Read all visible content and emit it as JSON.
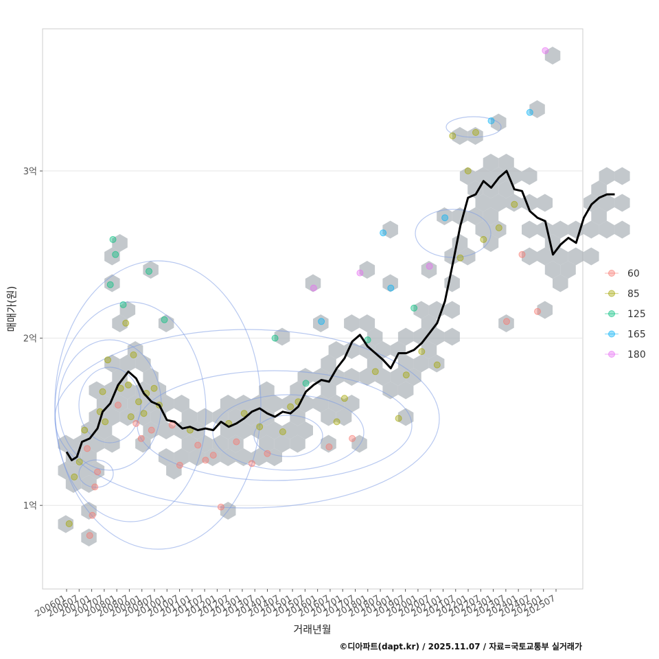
{
  "chart_data": {
    "type": "scatter",
    "xlabel": "거래년월",
    "ylabel": "매매가(원)",
    "caption": "©디아파트(dapt.kr) / 2025.11.07 / 자료=국토교통부 실거래가",
    "x_range": [
      "2006-01",
      "2025-12"
    ],
    "ylim_eok": [
      0.5,
      3.85
    ],
    "y_ticks": [
      {
        "value": 1,
        "label": "1억"
      },
      {
        "value": 2,
        "label": "2억"
      },
      {
        "value": 3,
        "label": "3억"
      }
    ],
    "x_tick_labels": [
      "200601",
      "200607",
      "200701",
      "200707",
      "200801",
      "200807",
      "200901",
      "200907",
      "201001",
      "201007",
      "201101",
      "201107",
      "201201",
      "201207",
      "201301",
      "201307",
      "201401",
      "201407",
      "201501",
      "201507",
      "201601",
      "201607",
      "201701",
      "201707",
      "201801",
      "201807",
      "201901",
      "201907",
      "202001",
      "202007",
      "202101",
      "202107",
      "202201",
      "202207",
      "202301",
      "202307",
      "202401",
      "202407",
      "202501",
      "202507"
    ],
    "legend": {
      "position": "right",
      "entries": [
        {
          "label": "60",
          "color": "#F8766D"
        },
        {
          "label": "85",
          "color": "#A3A500"
        },
        {
          "label": "125",
          "color": "#00BF7D"
        },
        {
          "label": "165",
          "color": "#00B0F6"
        },
        {
          "label": "180",
          "color": "#E76BF3"
        }
      ]
    },
    "hexbin_color": "#A9B0B6",
    "contour_color": "#7B9BE3",
    "trend_line": {
      "name": "moving-average",
      "color": "#000000",
      "points": [
        [
          "2006-01",
          1.32
        ],
        [
          "2006-03",
          1.27
        ],
        [
          "2006-05",
          1.29
        ],
        [
          "2006-07",
          1.38
        ],
        [
          "2006-10",
          1.4
        ],
        [
          "2007-01",
          1.46
        ],
        [
          "2007-03",
          1.56
        ],
        [
          "2007-06",
          1.61
        ],
        [
          "2007-09",
          1.72
        ],
        [
          "2008-01",
          1.8
        ],
        [
          "2008-04",
          1.76
        ],
        [
          "2008-07",
          1.67
        ],
        [
          "2008-10",
          1.62
        ],
        [
          "2009-01",
          1.6
        ],
        [
          "2009-04",
          1.51
        ],
        [
          "2009-07",
          1.5
        ],
        [
          "2009-10",
          1.46
        ],
        [
          "2010-01",
          1.47
        ],
        [
          "2010-04",
          1.45
        ],
        [
          "2010-07",
          1.46
        ],
        [
          "2010-10",
          1.45
        ],
        [
          "2011-01",
          1.5
        ],
        [
          "2011-04",
          1.47
        ],
        [
          "2011-07",
          1.49
        ],
        [
          "2011-10",
          1.52
        ],
        [
          "2012-01",
          1.56
        ],
        [
          "2012-04",
          1.58
        ],
        [
          "2012-07",
          1.55
        ],
        [
          "2012-10",
          1.53
        ],
        [
          "2013-01",
          1.56
        ],
        [
          "2013-04",
          1.55
        ],
        [
          "2013-07",
          1.59
        ],
        [
          "2013-10",
          1.68
        ],
        [
          "2014-01",
          1.72
        ],
        [
          "2014-04",
          1.75
        ],
        [
          "2014-07",
          1.74
        ],
        [
          "2014-10",
          1.82
        ],
        [
          "2015-01",
          1.88
        ],
        [
          "2015-04",
          1.98
        ],
        [
          "2015-07",
          2.02
        ],
        [
          "2015-10",
          1.95
        ],
        [
          "2016-01",
          1.91
        ],
        [
          "2016-04",
          1.87
        ],
        [
          "2016-07",
          1.82
        ],
        [
          "2016-10",
          1.91
        ],
        [
          "2017-01",
          1.91
        ],
        [
          "2017-04",
          1.93
        ],
        [
          "2017-07",
          1.97
        ],
        [
          "2017-10",
          2.03
        ],
        [
          "2018-01",
          2.09
        ],
        [
          "2018-04",
          2.22
        ],
        [
          "2018-07",
          2.44
        ],
        [
          "2018-10",
          2.67
        ],
        [
          "2019-01",
          2.84
        ],
        [
          "2019-04",
          2.86
        ],
        [
          "2019-07",
          2.94
        ],
        [
          "2019-10",
          2.9
        ],
        [
          "2020-01",
          2.96
        ],
        [
          "2020-04",
          3.0
        ],
        [
          "2020-07",
          2.89
        ],
        [
          "2020-10",
          2.88
        ],
        [
          "2021-01",
          2.76
        ],
        [
          "2021-04",
          2.72
        ],
        [
          "2021-07",
          2.7
        ],
        [
          "2021-10",
          2.5
        ],
        [
          "2022-01",
          2.56
        ],
        [
          "2022-04",
          2.6
        ],
        [
          "2022-07",
          2.57
        ],
        [
          "2022-10",
          2.72
        ],
        [
          "2023-01",
          2.8
        ],
        [
          "2023-04",
          2.84
        ],
        [
          "2023-07",
          2.86
        ],
        [
          "2023-10",
          2.86
        ]
      ]
    },
    "scatter_points": [
      [
        "2006-02",
        0.89,
        "85"
      ],
      [
        "2006-04",
        1.17,
        "85"
      ],
      [
        "2006-06",
        1.26,
        "85"
      ],
      [
        "2006-08",
        1.45,
        "85"
      ],
      [
        "2006-09",
        1.34,
        "60"
      ],
      [
        "2006-10",
        0.82,
        "60"
      ],
      [
        "2006-11",
        0.94,
        "60"
      ],
      [
        "2006-12",
        1.11,
        "60"
      ],
      [
        "2007-01",
        1.2,
        "60"
      ],
      [
        "2007-02",
        1.56,
        "85"
      ],
      [
        "2007-03",
        1.68,
        "85"
      ],
      [
        "2007-04",
        1.5,
        "85"
      ],
      [
        "2007-05",
        1.87,
        "85"
      ],
      [
        "2007-06",
        2.32,
        "125"
      ],
      [
        "2007-07",
        2.59,
        "125"
      ],
      [
        "2007-08",
        2.5,
        "125"
      ],
      [
        "2007-09",
        1.6,
        "60"
      ],
      [
        "2007-10",
        1.7,
        "85"
      ],
      [
        "2007-11",
        2.2,
        "125"
      ],
      [
        "2007-12",
        2.09,
        "85"
      ],
      [
        "2008-01",
        1.72,
        "85"
      ],
      [
        "2008-02",
        1.53,
        "85"
      ],
      [
        "2008-03",
        1.9,
        "85"
      ],
      [
        "2008-04",
        1.49,
        "60"
      ],
      [
        "2008-05",
        1.62,
        "85"
      ],
      [
        "2008-06",
        1.4,
        "60"
      ],
      [
        "2008-07",
        1.55,
        "85"
      ],
      [
        "2008-08",
        1.67,
        "85"
      ],
      [
        "2008-09",
        2.4,
        "125"
      ],
      [
        "2008-10",
        1.45,
        "60"
      ],
      [
        "2008-11",
        1.7,
        "85"
      ],
      [
        "2009-01",
        1.6,
        "85"
      ],
      [
        "2009-03",
        2.11,
        "125"
      ],
      [
        "2009-06",
        1.48,
        "60"
      ],
      [
        "2009-09",
        1.24,
        "60"
      ],
      [
        "2010-01",
        1.45,
        "85"
      ],
      [
        "2010-04",
        1.36,
        "60"
      ],
      [
        "2010-07",
        1.27,
        "60"
      ],
      [
        "2010-10",
        1.3,
        "60"
      ],
      [
        "2011-01",
        0.99,
        "60"
      ],
      [
        "2011-04",
        1.49,
        "85"
      ],
      [
        "2011-07",
        1.38,
        "60"
      ],
      [
        "2011-10",
        1.55,
        "85"
      ],
      [
        "2012-01",
        1.25,
        "60"
      ],
      [
        "2012-04",
        1.47,
        "85"
      ],
      [
        "2012-07",
        1.31,
        "60"
      ],
      [
        "2012-10",
        2.0,
        "125"
      ],
      [
        "2013-01",
        1.44,
        "85"
      ],
      [
        "2013-04",
        1.59,
        "85"
      ],
      [
        "2013-07",
        1.62,
        "85"
      ],
      [
        "2013-10",
        1.73,
        "125"
      ],
      [
        "2014-01",
        2.3,
        "180"
      ],
      [
        "2014-04",
        2.1,
        "165"
      ],
      [
        "2014-07",
        1.35,
        "60"
      ],
      [
        "2014-10",
        1.5,
        "85"
      ],
      [
        "2015-01",
        1.64,
        "85"
      ],
      [
        "2015-04",
        1.4,
        "60"
      ],
      [
        "2015-07",
        2.39,
        "180"
      ],
      [
        "2015-10",
        1.99,
        "125"
      ],
      [
        "2016-01",
        1.8,
        "85"
      ],
      [
        "2016-04",
        2.63,
        "165"
      ],
      [
        "2016-07",
        2.3,
        "165"
      ],
      [
        "2016-10",
        1.52,
        "85"
      ],
      [
        "2017-01",
        1.78,
        "85"
      ],
      [
        "2017-04",
        2.18,
        "125"
      ],
      [
        "2017-07",
        1.92,
        "85"
      ],
      [
        "2017-10",
        2.43,
        "180"
      ],
      [
        "2018-01",
        1.84,
        "85"
      ],
      [
        "2018-04",
        2.72,
        "165"
      ],
      [
        "2018-07",
        3.21,
        "85"
      ],
      [
        "2018-10",
        2.48,
        "85"
      ],
      [
        "2019-01",
        3.0,
        "85"
      ],
      [
        "2019-04",
        3.23,
        "85"
      ],
      [
        "2019-07",
        2.59,
        "85"
      ],
      [
        "2019-10",
        3.3,
        "165"
      ],
      [
        "2020-01",
        2.66,
        "85"
      ],
      [
        "2020-04",
        2.1,
        "60"
      ],
      [
        "2020-07",
        2.8,
        "85"
      ],
      [
        "2020-10",
        2.5,
        "60"
      ],
      [
        "2021-01",
        3.35,
        "165"
      ],
      [
        "2021-04",
        2.16,
        "60"
      ],
      [
        "2021-07",
        3.72,
        "180"
      ]
    ]
  }
}
